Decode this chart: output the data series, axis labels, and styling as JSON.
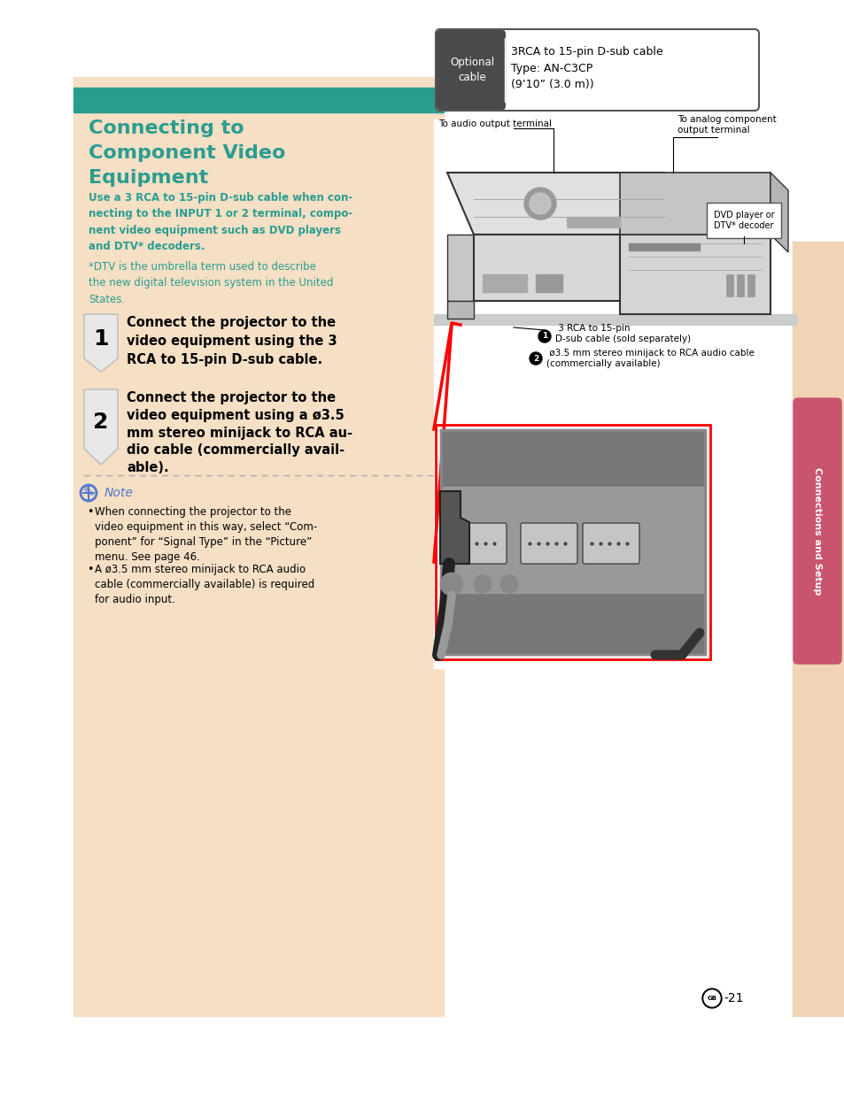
{
  "page_bg": "#ffffff",
  "left_panel_bg": "#f5dfc5",
  "right_panel_bg": "#f0d4b5",
  "teal_bar_color": "#2a9d8f",
  "title_color": "#2a9d8f",
  "body_color": "#2a9d8f",
  "footnote_color": "#2a9d8f",
  "sidebar_color": "#c8546e",
  "title_line1": "Connecting to",
  "title_line2": "Component Video",
  "title_line3": "Equipment",
  "body_text": "Use a 3 RCA to 15-pin D-sub cable when con-\nnecting to the INPUT 1 or 2 terminal, compo-\nnent video equipment such as DVD players\nand DTV* decoders.",
  "footnote_text": "*DTV is the umbrella term used to describe\nthe new digital television system in the United\nStates.",
  "step1_text": "Connect the projector to the\nvideo equipment using the 3\nRCA to 15-pin D-sub cable.",
  "step2_text": "Connect the projector to the\nvideo equipment using a ø3.5\nmm stereo minijack to RCA au-\ndio cable (commercially avail-\nable).",
  "note_text1": "When connecting the projector to the\nvideo equipment in this way, select “Com-\nponent” for “Signal Type” in the “Picture”\nmenu. See page 46.",
  "note_text2": "A ø3.5 mm stereo minijack to RCA audio\ncable (commercially available) is required\nfor audio input.",
  "optional_label": "Optional\ncable",
  "optional_content": "3RCA to 15-pin D-sub cable\nType: AN-C3CP\n(9’10” (3.0 m))",
  "sidebar_label": "Connections and Setup",
  "page_num_text": "-21",
  "diag_label_analog": "To analog component\noutput terminal",
  "diag_label_audio": "To audio output terminal",
  "diag_label_dvd": "DVD player or\nDTV* decoder",
  "diag_label1": " 3 RCA to 15-pin\nD-sub cable (sold separately)",
  "diag_label2": " ø3.5 mm stereo minijack to RCA audio cable\n(commercially available)",
  "note_page_ref": "46"
}
